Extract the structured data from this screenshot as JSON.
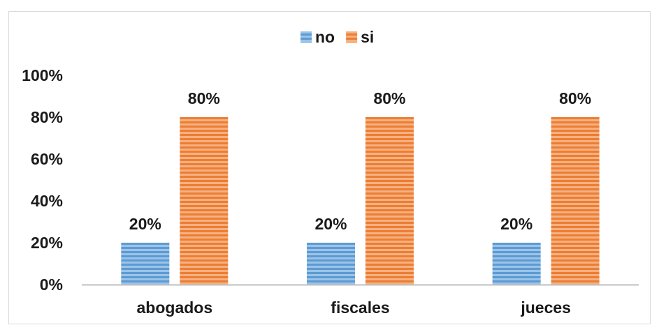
{
  "chart_data": {
    "type": "bar",
    "categories": [
      "abogados",
      "fiscales",
      "jueces"
    ],
    "series": [
      {
        "name": "no",
        "values": [
          20,
          20,
          20
        ],
        "data_labels": [
          "20%",
          "20%",
          "20%"
        ],
        "color": "#5b9bd5"
      },
      {
        "name": "si",
        "values": [
          80,
          80,
          80
        ],
        "data_labels": [
          "80%",
          "80%",
          "80%"
        ],
        "color": "#ed7d31"
      }
    ],
    "ylim": [
      0,
      100
    ],
    "yticks": [
      "0%",
      "20%",
      "40%",
      "60%",
      "80%",
      "100%"
    ],
    "legend_position": "top-center",
    "grid": false,
    "title": "",
    "xlabel": "",
    "ylabel": ""
  }
}
